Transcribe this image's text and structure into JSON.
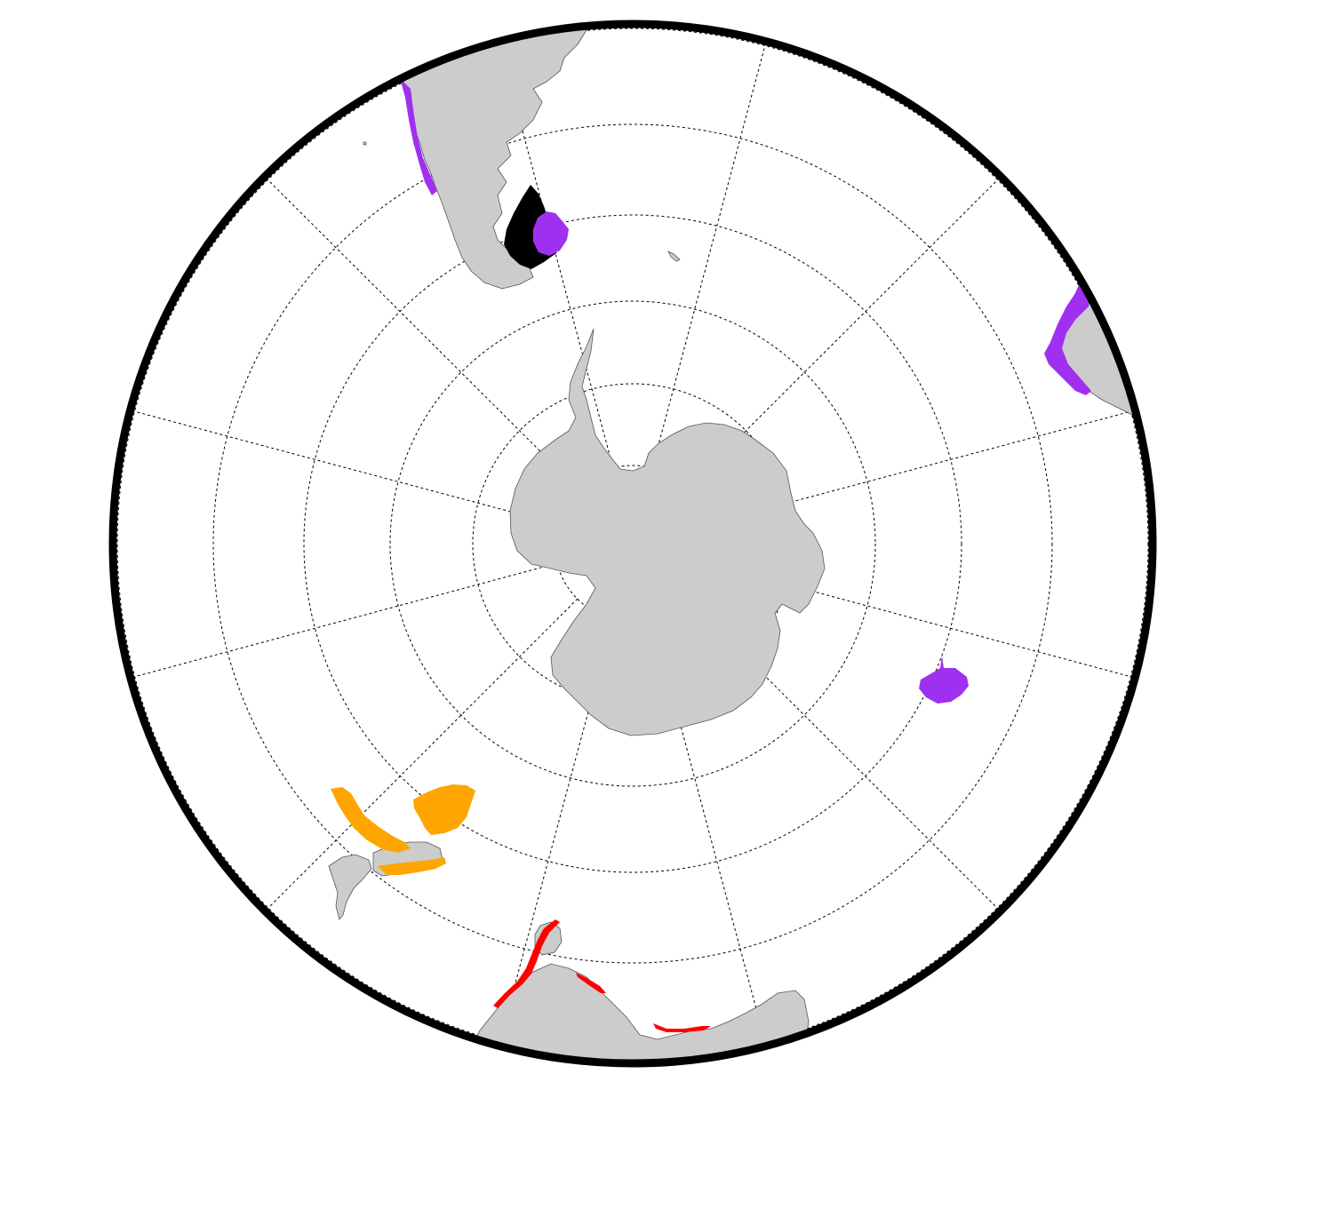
{
  "map": {
    "projection": "south-polar-stereographic",
    "graticule": {
      "latitude_rings": 6,
      "longitude_spokes": 12,
      "style": "dotted"
    },
    "colors": {
      "background": "#ffffff",
      "land": "#cccccc",
      "coastline": "#555555",
      "frame": "#000000",
      "graticule": "#000000"
    },
    "regions": [
      {
        "id": "south-america",
        "kind": "landmass",
        "color": "#cccccc"
      },
      {
        "id": "antarctica",
        "kind": "landmass",
        "color": "#cccccc"
      },
      {
        "id": "africa",
        "kind": "landmass",
        "color": "#cccccc"
      },
      {
        "id": "australia",
        "kind": "landmass",
        "color": "#cccccc"
      },
      {
        "id": "new-zealand",
        "kind": "landmass",
        "color": "#cccccc"
      },
      {
        "id": "falklands-black",
        "kind": "highlight",
        "color": "#000000"
      },
      {
        "id": "falklands-purple",
        "kind": "highlight",
        "color": "#a030f0"
      },
      {
        "id": "chile-coast-purple",
        "kind": "highlight",
        "color": "#a030f0"
      },
      {
        "id": "south-africa-purple",
        "kind": "highlight",
        "color": "#a030f0"
      },
      {
        "id": "kerguelen-purple",
        "kind": "highlight",
        "color": "#a030f0"
      },
      {
        "id": "new-zealand-orange",
        "kind": "highlight",
        "color": "#ffa500"
      },
      {
        "id": "australia-coast-red",
        "kind": "highlight",
        "color": "#ff0000"
      }
    ]
  }
}
